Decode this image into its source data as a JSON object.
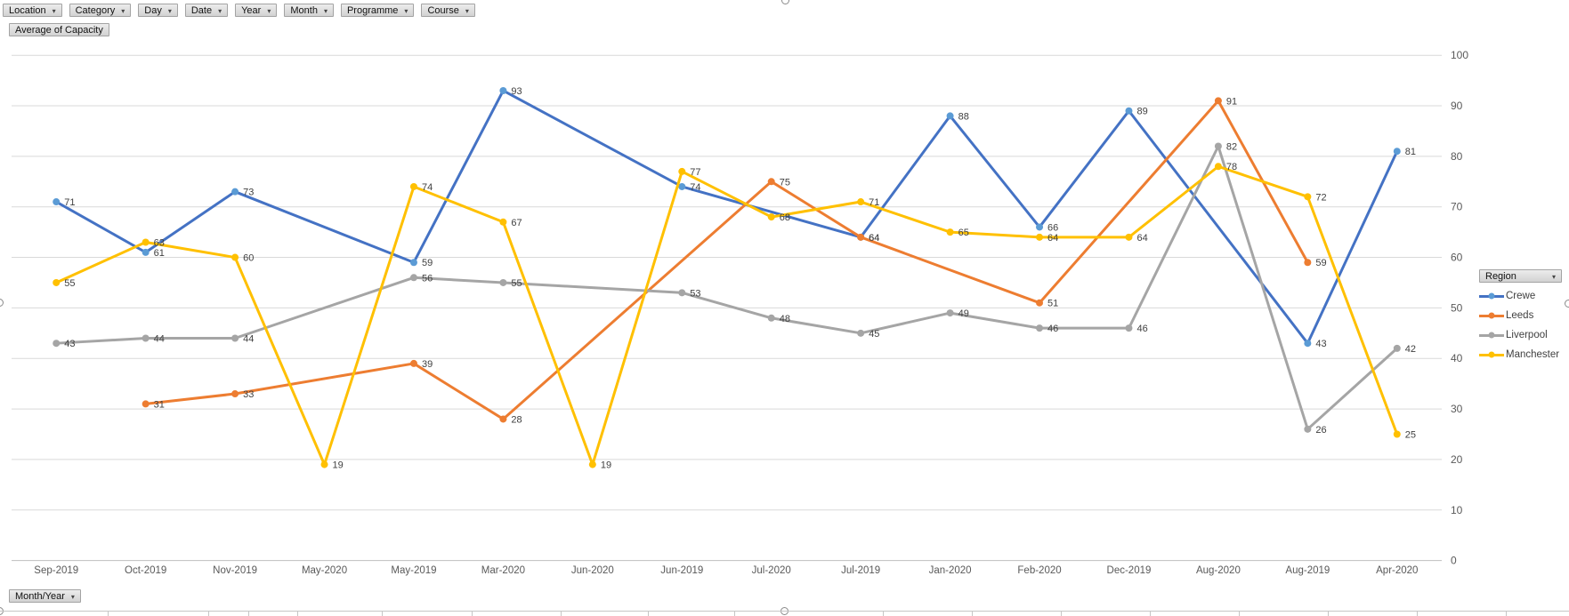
{
  "filters": {
    "top_buttons": [
      {
        "label": "Location"
      },
      {
        "label": "Category"
      },
      {
        "label": "Day"
      },
      {
        "label": "Date"
      },
      {
        "label": "Year"
      },
      {
        "label": "Month"
      },
      {
        "label": "Programme"
      },
      {
        "label": "Course"
      }
    ],
    "values_button_label": "Average of Capacity",
    "axis_button_label": "Month/Year",
    "legend_button_label": "Region"
  },
  "chart_data": {
    "type": "line",
    "title": "",
    "xlabel": "",
    "ylabel": "",
    "categories": [
      "Sep-2019",
      "Oct-2019",
      "Nov-2019",
      "May-2020",
      "May-2019",
      "Mar-2020",
      "Jun-2020",
      "Jun-2019",
      "Jul-2020",
      "Jul-2019",
      "Jan-2020",
      "Feb-2020",
      "Dec-2019",
      "Aug-2020",
      "Aug-2019",
      "Apr-2020"
    ],
    "series": [
      {
        "name": "Crewe",
        "color": "#4472C4",
        "marker_color": "#5B9BD5",
        "values": [
          71,
          61,
          73,
          null,
          59,
          93,
          null,
          74,
          null,
          64,
          88,
          66,
          89,
          null,
          43,
          81
        ]
      },
      {
        "name": "Leeds",
        "color": "#ED7D31",
        "marker_color": "#ED7D31",
        "values": [
          null,
          31,
          33,
          null,
          39,
          28,
          null,
          null,
          75,
          64,
          null,
          51,
          null,
          91,
          59,
          null
        ]
      },
      {
        "name": "Liverpool",
        "color": "#A5A5A5",
        "marker_color": "#A5A5A5",
        "values": [
          43,
          44,
          44,
          null,
          56,
          55,
          null,
          53,
          48,
          45,
          49,
          46,
          46,
          82,
          26,
          42
        ]
      },
      {
        "name": "Manchester",
        "color": "#FFC000",
        "marker_color": "#FFC000",
        "values": [
          55,
          63,
          60,
          19,
          74,
          67,
          19,
          77,
          68,
          71,
          65,
          64,
          64,
          78,
          72,
          25
        ]
      }
    ],
    "ylim": [
      0,
      100
    ],
    "y_ticks": [
      0,
      10,
      20,
      30,
      40,
      50,
      60,
      70,
      80,
      90,
      100
    ],
    "y_axis_side": "right",
    "grid": true,
    "data_labels": true,
    "legend_position": "right",
    "gridline_color": "#D9D9D9",
    "axis_line_color": "#BFBFBF",
    "tick_label_color": "#595959",
    "data_label_color": "#3f3f3f"
  }
}
